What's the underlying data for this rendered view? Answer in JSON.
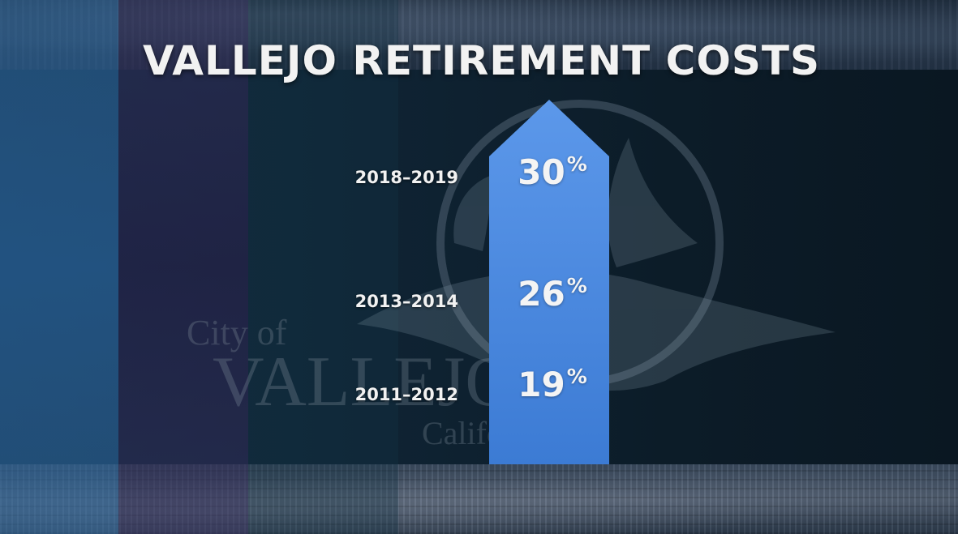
{
  "title": "VALLEJO RETIREMENT COSTS",
  "watermark": {
    "line1": "City of",
    "line2": "VALLEJO",
    "line3": "California"
  },
  "chart_data": {
    "type": "bar",
    "categories": [
      "2011–2012",
      "2013–2014",
      "2018–2019"
    ],
    "values": [
      19,
      26,
      30
    ],
    "unit": "%",
    "title": "VALLEJO RETIREMENT COSTS"
  },
  "rows": [
    {
      "period": "2018–2019",
      "value": "30",
      "unit": "%"
    },
    {
      "period": "2013–2014",
      "value": "26",
      "unit": "%"
    },
    {
      "period": "2011–2012",
      "value": "19",
      "unit": "%"
    }
  ],
  "colors": {
    "arrow_top": "#5b97ea",
    "arrow_bottom": "#3f7fd8",
    "text": "#f2f2f2"
  }
}
